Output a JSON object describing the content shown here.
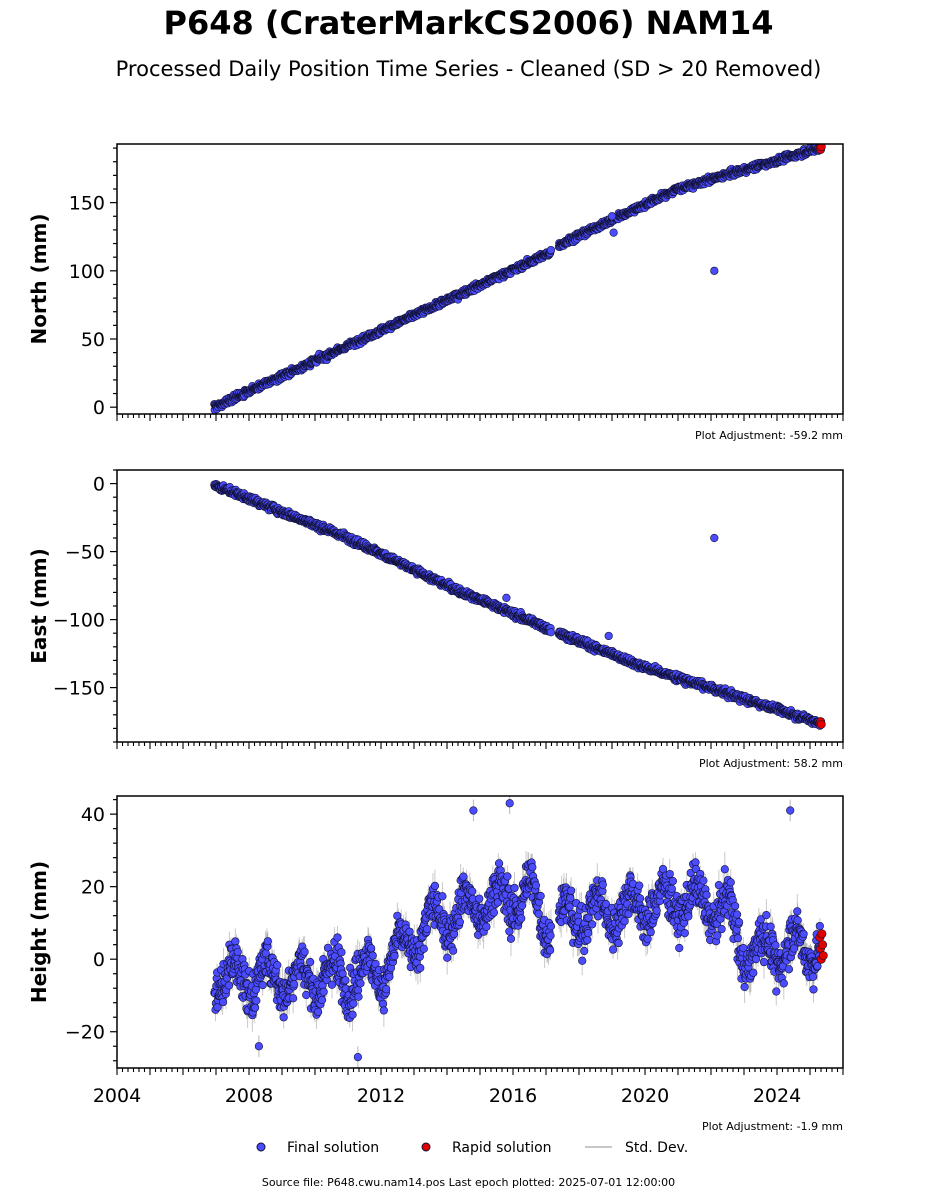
{
  "title": "P648 (CraterMarkCS2006) NAM14",
  "subtitle": "Processed Daily Position Time Series - Cleaned (SD > 20 Removed)",
  "source_text": "Source file: P648.cwu.nam14.pos  Last epoch plotted: 2025-07-01 12:00:00",
  "legend": {
    "final": "Final solution",
    "rapid": "Rapid solution",
    "std": "Std. Dev."
  },
  "colors": {
    "final": "#4b4bff",
    "rapid": "#e00000",
    "std": "#c8c8c8",
    "edge": "#111133"
  },
  "chart_data": [
    {
      "type": "scatter",
      "ylabel": "North (mm)",
      "adjustment": "Plot Adjustment: -59.2 mm",
      "xlim": [
        2004,
        2026
      ],
      "ylim": [
        -5,
        193
      ],
      "yticks": [
        0,
        50,
        100,
        150
      ],
      "ytick_labels": [
        "0",
        "50",
        "100",
        "150"
      ],
      "trend": [
        [
          2006.95,
          0
        ],
        [
          2017.1,
          113
        ],
        [
          2017.4,
          119
        ],
        [
          2021.0,
          160
        ],
        [
          2025.3,
          190
        ]
      ],
      "noise": 2.5,
      "outliers": [
        [
          2022.1,
          100
        ],
        [
          2019.0,
          140
        ],
        [
          2019.05,
          128
        ]
      ],
      "rapid": [
        [
          2025.3,
          190
        ],
        [
          2025.32,
          189
        ],
        [
          2025.34,
          191
        ]
      ]
    },
    {
      "type": "scatter",
      "ylabel": "East (mm)",
      "adjustment": "Plot Adjustment: 58.2 mm",
      "xlim": [
        2004,
        2026
      ],
      "ylim": [
        -190,
        10
      ],
      "yticks": [
        0,
        -50,
        -100,
        -150
      ],
      "ytick_labels": [
        "0",
        "−50",
        "−100",
        "−150"
      ],
      "trend": [
        [
          2006.95,
          -1
        ],
        [
          2011.0,
          -40
        ],
        [
          2014.0,
          -75
        ],
        [
          2017.1,
          -107
        ],
        [
          2017.4,
          -110
        ],
        [
          2020.0,
          -135
        ],
        [
          2025.3,
          -176
        ]
      ],
      "noise": 2.8,
      "outliers": [
        [
          2022.1,
          -40
        ],
        [
          2018.9,
          -112
        ],
        [
          2015.8,
          -84
        ]
      ],
      "rapid": [
        [
          2025.3,
          -176
        ],
        [
          2025.32,
          -175
        ],
        [
          2025.34,
          -177
        ]
      ]
    },
    {
      "type": "scatter",
      "ylabel": "Height (mm)",
      "adjustment": "Plot Adjustment: -1.9 mm",
      "xlabel": "",
      "xlim": [
        2004,
        2026
      ],
      "ylim": [
        -30,
        45
      ],
      "yticks": [
        40,
        20,
        0,
        -20
      ],
      "ytick_labels": [
        "40",
        "20",
        "0",
        "−20"
      ],
      "xticks": [
        2004,
        2008,
        2012,
        2016,
        2020,
        2024
      ],
      "xtick_labels": [
        "2004",
        "2008",
        "2012",
        "2016",
        "2020",
        "2024"
      ],
      "trend": [
        [
          2006.95,
          -5
        ],
        [
          2011.0,
          -5
        ],
        [
          2012.0,
          -3
        ],
        [
          2013.5,
          10
        ],
        [
          2015.0,
          15
        ],
        [
          2016.5,
          18
        ],
        [
          2017.1,
          10
        ],
        [
          2018.0,
          12
        ],
        [
          2021.0,
          16
        ],
        [
          2022.5,
          14
        ],
        [
          2023.0,
          2
        ],
        [
          2025.3,
          4
        ]
      ],
      "noise": 7,
      "seasonal": 5,
      "outliers": [
        [
          2014.8,
          41
        ],
        [
          2015.9,
          43
        ],
        [
          2024.4,
          41
        ],
        [
          2011.3,
          -27
        ],
        [
          2008.3,
          -24
        ]
      ],
      "rapid": [
        [
          2025.3,
          6
        ],
        [
          2025.32,
          3
        ],
        [
          2025.34,
          0
        ],
        [
          2025.36,
          7
        ],
        [
          2025.38,
          4
        ],
        [
          2025.4,
          1
        ]
      ]
    }
  ]
}
